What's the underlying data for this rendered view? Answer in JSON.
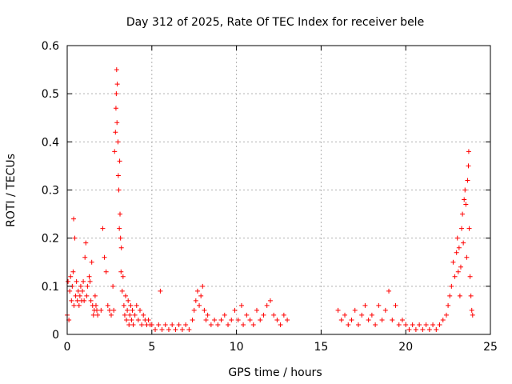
{
  "chart_data": {
    "type": "scatter",
    "title": "Day 312 of 2025, Rate Of TEC Index for receiver bele",
    "xlabel": "GPS time / hours",
    "ylabel": "ROTI / TECUs",
    "xlim": [
      0,
      25
    ],
    "ylim": [
      0,
      0.6
    ],
    "x_ticks": [
      "0",
      "5",
      "10",
      "15",
      "20",
      "25"
    ],
    "y_ticks": [
      "0",
      "0.1",
      "0.2",
      "0.3",
      "0.4",
      "0.5",
      "0.6"
    ],
    "grid": true,
    "marker": "+",
    "color": "#ff0000",
    "series": [
      {
        "points": [
          [
            0.0,
            0.04
          ],
          [
            0.05,
            0.11
          ],
          [
            0.1,
            0.03
          ],
          [
            0.15,
            0.09
          ],
          [
            0.2,
            0.12
          ],
          [
            0.25,
            0.07
          ],
          [
            0.3,
            0.1
          ],
          [
            0.35,
            0.13
          ],
          [
            0.38,
            0.24
          ],
          [
            0.4,
            0.06
          ],
          [
            0.45,
            0.2
          ],
          [
            0.5,
            0.08
          ],
          [
            0.55,
            0.11
          ],
          [
            0.6,
            0.07
          ],
          [
            0.65,
            0.09
          ],
          [
            0.7,
            0.06
          ],
          [
            0.75,
            0.08
          ],
          [
            0.8,
            0.1
          ],
          [
            0.85,
            0.07
          ],
          [
            0.9,
            0.09
          ],
          [
            0.95,
            0.11
          ],
          [
            1.0,
            0.07
          ],
          [
            1.05,
            0.16
          ],
          [
            1.1,
            0.19
          ],
          [
            1.15,
            0.08
          ],
          [
            1.2,
            0.1
          ],
          [
            1.3,
            0.12
          ],
          [
            1.35,
            0.11
          ],
          [
            1.4,
            0.07
          ],
          [
            1.45,
            0.15
          ],
          [
            1.5,
            0.06
          ],
          [
            1.55,
            0.04
          ],
          [
            1.6,
            0.05
          ],
          [
            1.65,
            0.08
          ],
          [
            1.7,
            0.06
          ],
          [
            1.75,
            0.05
          ],
          [
            1.8,
            0.04
          ],
          [
            2.0,
            0.05
          ],
          [
            2.1,
            0.22
          ],
          [
            2.2,
            0.16
          ],
          [
            2.3,
            0.13
          ],
          [
            2.4,
            0.06
          ],
          [
            2.5,
            0.05
          ],
          [
            2.6,
            0.04
          ],
          [
            2.7,
            0.1
          ],
          [
            2.75,
            0.05
          ],
          [
            2.8,
            0.38
          ],
          [
            2.85,
            0.42
          ],
          [
            2.88,
            0.47
          ],
          [
            2.9,
            0.5
          ],
          [
            2.92,
            0.55
          ],
          [
            2.94,
            0.44
          ],
          [
            2.96,
            0.52
          ],
          [
            3.0,
            0.4
          ],
          [
            3.02,
            0.33
          ],
          [
            3.05,
            0.3
          ],
          [
            3.08,
            0.22
          ],
          [
            3.1,
            0.36
          ],
          [
            3.12,
            0.25
          ],
          [
            3.15,
            0.2
          ],
          [
            3.18,
            0.13
          ],
          [
            3.2,
            0.18
          ],
          [
            3.25,
            0.09
          ],
          [
            3.3,
            0.12
          ],
          [
            3.35,
            0.06
          ],
          [
            3.4,
            0.04
          ],
          [
            3.45,
            0.08
          ],
          [
            3.5,
            0.03
          ],
          [
            3.55,
            0.05
          ],
          [
            3.6,
            0.07
          ],
          [
            3.65,
            0.02
          ],
          [
            3.7,
            0.04
          ],
          [
            3.75,
            0.06
          ],
          [
            3.8,
            0.03
          ],
          [
            3.85,
            0.05
          ],
          [
            3.9,
            0.02
          ],
          [
            4.0,
            0.04
          ],
          [
            4.1,
            0.06
          ],
          [
            4.2,
            0.03
          ],
          [
            4.3,
            0.05
          ],
          [
            4.4,
            0.02
          ],
          [
            4.5,
            0.04
          ],
          [
            4.6,
            0.03
          ],
          [
            4.7,
            0.02
          ],
          [
            4.8,
            0.03
          ],
          [
            4.9,
            0.02
          ],
          [
            5.0,
            0.02
          ],
          [
            5.2,
            0.01
          ],
          [
            5.4,
            0.02
          ],
          [
            5.5,
            0.09
          ],
          [
            5.6,
            0.01
          ],
          [
            5.8,
            0.02
          ],
          [
            6.0,
            0.01
          ],
          [
            6.2,
            0.02
          ],
          [
            6.4,
            0.01
          ],
          [
            6.6,
            0.02
          ],
          [
            6.8,
            0.01
          ],
          [
            7.0,
            0.02
          ],
          [
            7.2,
            0.01
          ],
          [
            7.4,
            0.03
          ],
          [
            7.5,
            0.05
          ],
          [
            7.6,
            0.07
          ],
          [
            7.7,
            0.09
          ],
          [
            7.8,
            0.06
          ],
          [
            7.9,
            0.08
          ],
          [
            8.0,
            0.1
          ],
          [
            8.1,
            0.05
          ],
          [
            8.2,
            0.03
          ],
          [
            8.3,
            0.04
          ],
          [
            8.5,
            0.02
          ],
          [
            8.7,
            0.03
          ],
          [
            8.9,
            0.02
          ],
          [
            9.1,
            0.03
          ],
          [
            9.3,
            0.04
          ],
          [
            9.5,
            0.02
          ],
          [
            9.7,
            0.03
          ],
          [
            9.9,
            0.05
          ],
          [
            10.1,
            0.03
          ],
          [
            10.3,
            0.06
          ],
          [
            10.4,
            0.02
          ],
          [
            10.6,
            0.04
          ],
          [
            10.8,
            0.03
          ],
          [
            11.0,
            0.02
          ],
          [
            11.2,
            0.05
          ],
          [
            11.4,
            0.03
          ],
          [
            11.6,
            0.04
          ],
          [
            11.8,
            0.06
          ],
          [
            12.0,
            0.07
          ],
          [
            12.2,
            0.04
          ],
          [
            12.4,
            0.03
          ],
          [
            12.6,
            0.02
          ],
          [
            12.8,
            0.04
          ],
          [
            13.0,
            0.03
          ],
          [
            16.0,
            0.05
          ],
          [
            16.2,
            0.03
          ],
          [
            16.4,
            0.04
          ],
          [
            16.6,
            0.02
          ],
          [
            16.8,
            0.03
          ],
          [
            17.0,
            0.05
          ],
          [
            17.2,
            0.02
          ],
          [
            17.4,
            0.04
          ],
          [
            17.6,
            0.06
          ],
          [
            17.8,
            0.03
          ],
          [
            18.0,
            0.04
          ],
          [
            18.2,
            0.02
          ],
          [
            18.4,
            0.06
          ],
          [
            18.6,
            0.03
          ],
          [
            18.8,
            0.05
          ],
          [
            19.0,
            0.09
          ],
          [
            19.2,
            0.03
          ],
          [
            19.4,
            0.06
          ],
          [
            19.6,
            0.02
          ],
          [
            19.8,
            0.03
          ],
          [
            20.0,
            0.02
          ],
          [
            20.2,
            0.01
          ],
          [
            20.4,
            0.02
          ],
          [
            20.6,
            0.01
          ],
          [
            20.8,
            0.02
          ],
          [
            21.0,
            0.01
          ],
          [
            21.2,
            0.02
          ],
          [
            21.4,
            0.01
          ],
          [
            21.6,
            0.02
          ],
          [
            21.8,
            0.01
          ],
          [
            22.0,
            0.02
          ],
          [
            22.2,
            0.03
          ],
          [
            22.4,
            0.04
          ],
          [
            22.5,
            0.06
          ],
          [
            22.6,
            0.08
          ],
          [
            22.7,
            0.1
          ],
          [
            22.8,
            0.15
          ],
          [
            22.9,
            0.12
          ],
          [
            23.0,
            0.17
          ],
          [
            23.05,
            0.2
          ],
          [
            23.1,
            0.13
          ],
          [
            23.15,
            0.18
          ],
          [
            23.2,
            0.08
          ],
          [
            23.25,
            0.14
          ],
          [
            23.3,
            0.22
          ],
          [
            23.35,
            0.25
          ],
          [
            23.4,
            0.19
          ],
          [
            23.45,
            0.28
          ],
          [
            23.5,
            0.3
          ],
          [
            23.55,
            0.27
          ],
          [
            23.6,
            0.16
          ],
          [
            23.65,
            0.32
          ],
          [
            23.7,
            0.35
          ],
          [
            23.72,
            0.38
          ],
          [
            23.75,
            0.22
          ],
          [
            23.8,
            0.12
          ],
          [
            23.85,
            0.08
          ],
          [
            23.9,
            0.05
          ],
          [
            23.95,
            0.04
          ]
        ]
      }
    ]
  }
}
